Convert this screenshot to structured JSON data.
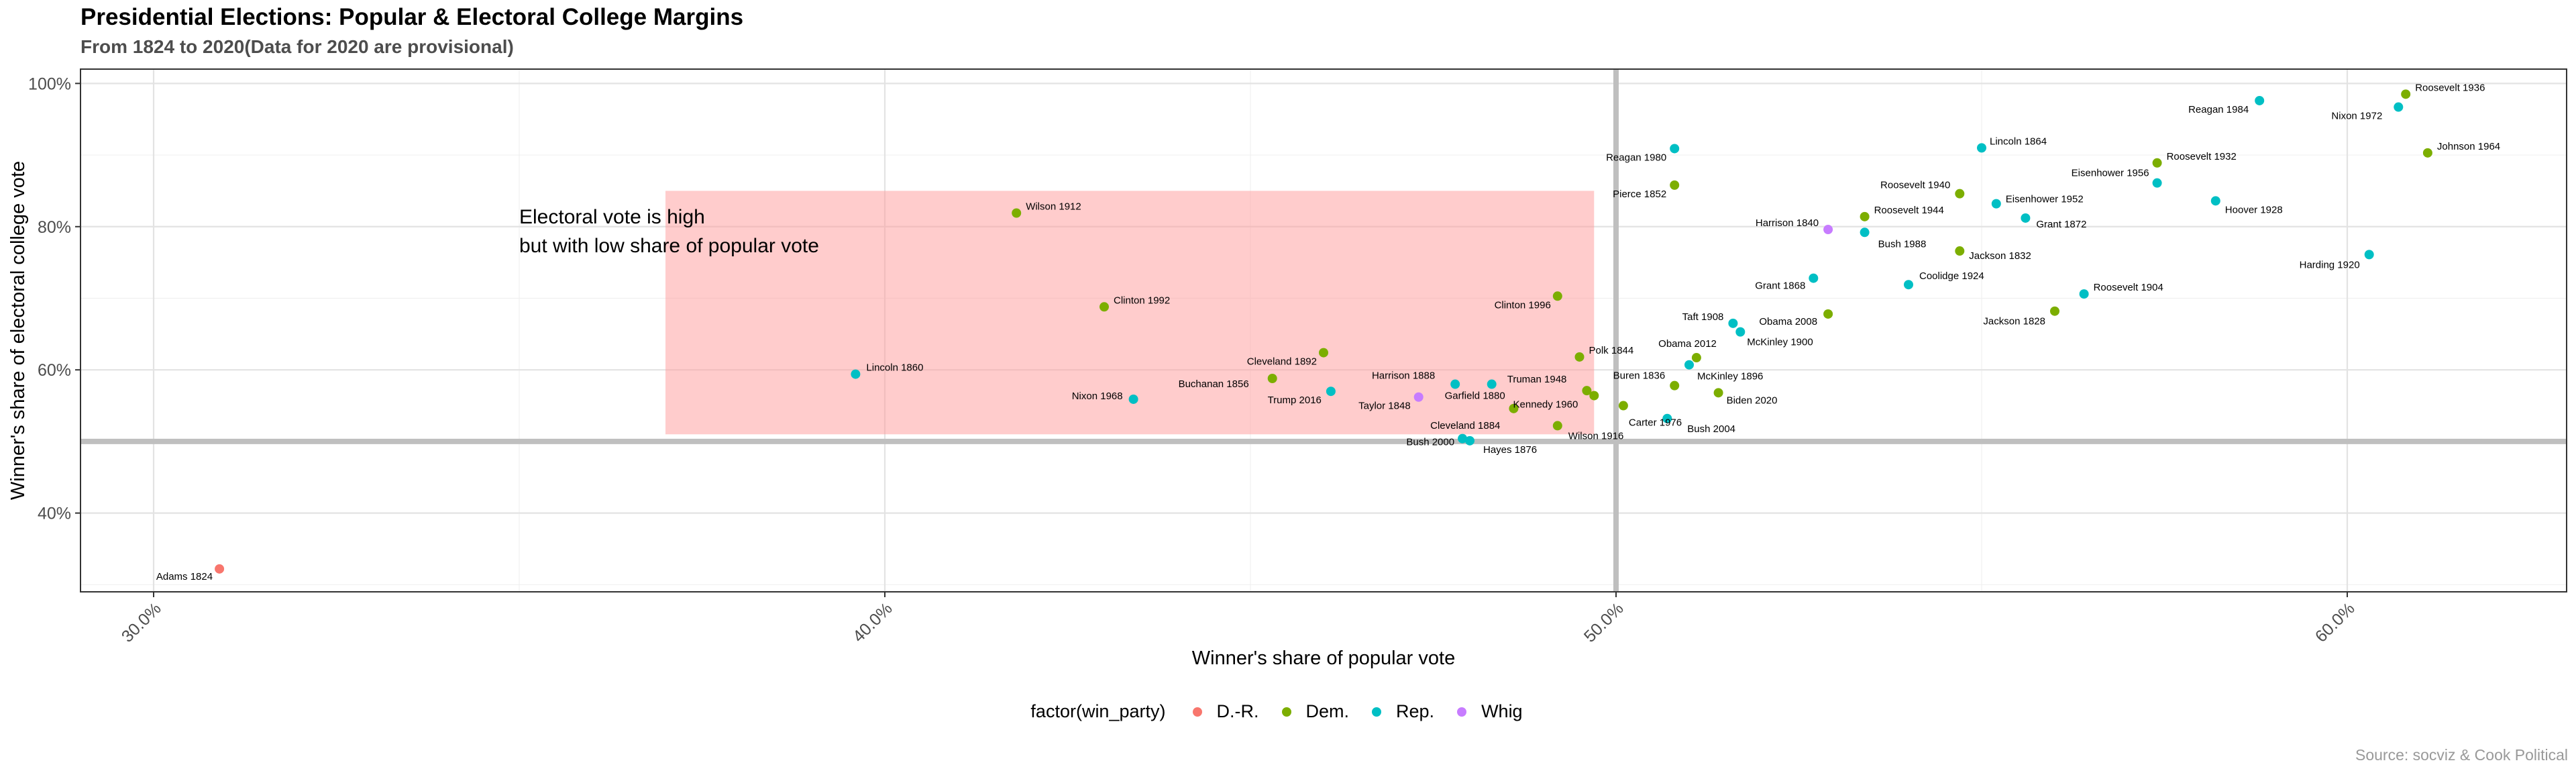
{
  "chart_data": {
    "type": "scatter",
    "title": "Presidential Elections: Popular & Electoral College Margins",
    "subtitle": "From 1824 to 2020(Data for 2020 are provisional)",
    "xlabel": "Winner's share of popular vote",
    "ylabel": "Winner's share of electoral college vote",
    "caption": "Source: socviz & Cook Political",
    "xlim": [
      0.29,
      0.63
    ],
    "ylim": [
      0.29,
      1.02
    ],
    "x_ticks": [
      0.3,
      0.4,
      0.5,
      0.6
    ],
    "x_tick_labels": [
      "30.0%",
      "40.0%",
      "50.0%",
      "60.0%"
    ],
    "y_ticks": [
      0.4,
      0.6,
      0.8,
      1.0
    ],
    "y_tick_labels": [
      "40%",
      "60%",
      "80%",
      "100%"
    ],
    "grid": true,
    "reference_lines": {
      "x": 0.5,
      "y": 0.5
    },
    "highlight_region": {
      "x": [
        0.37,
        0.497
      ],
      "y": [
        0.51,
        0.85
      ],
      "color": "#ff9999"
    },
    "annotation": [
      "Electoral vote is high",
      "but with low share of popular vote"
    ],
    "annotation_position": {
      "x": 0.35,
      "y": 0.87
    },
    "legend": {
      "title": "factor(win_party)",
      "position": "bottom",
      "items": [
        {
          "label": "D.-R.",
          "color": "#F8766D"
        },
        {
          "label": "Dem.",
          "color": "#7CAE00"
        },
        {
          "label": "Rep.",
          "color": "#00BFC4"
        },
        {
          "label": "Whig",
          "color": "#C77CFF"
        }
      ]
    },
    "points": [
      {
        "label": "Adams 1824",
        "x": 0.309,
        "y": 0.322,
        "party": "D.-R.",
        "dx": -10,
        "dy": 16,
        "anchor": "end"
      },
      {
        "label": "Lincoln 1860",
        "x": 0.396,
        "y": 0.594,
        "party": "Rep.",
        "dx": 16,
        "dy": -5,
        "anchor": "start"
      },
      {
        "label": "Wilson 1912",
        "x": 0.418,
        "y": 0.819,
        "party": "Dem.",
        "dx": 14,
        "dy": -5,
        "anchor": "start"
      },
      {
        "label": "Clinton 1992",
        "x": 0.43,
        "y": 0.688,
        "party": "Dem.",
        "dx": 14,
        "dy": -5,
        "anchor": "start"
      },
      {
        "label": "Nixon 1968",
        "x": 0.434,
        "y": 0.559,
        "party": "Rep.",
        "dx": -16,
        "dy": 0,
        "anchor": "end"
      },
      {
        "label": "Buchanan 1856",
        "x": 0.453,
        "y": 0.588,
        "party": "Dem.",
        "dx": -35,
        "dy": 13,
        "anchor": "end"
      },
      {
        "label": "Cleveland 1892",
        "x": 0.46,
        "y": 0.624,
        "party": "Dem.",
        "dx": -10,
        "dy": 18,
        "anchor": "end"
      },
      {
        "label": "Trump 2016",
        "x": 0.461,
        "y": 0.57,
        "party": "Rep.",
        "dx": -14,
        "dy": 18,
        "anchor": "end"
      },
      {
        "label": "Taylor 1848",
        "x": 0.473,
        "y": 0.562,
        "party": "Whig",
        "dx": -12,
        "dy": 18,
        "anchor": "end"
      },
      {
        "label": "Harrison 1888",
        "x": 0.478,
        "y": 0.58,
        "party": "Rep.",
        "dx": -30,
        "dy": -8,
        "anchor": "end"
      },
      {
        "label": "Garfield 1880",
        "x": 0.483,
        "y": 0.58,
        "party": "Rep.",
        "dx": 20,
        "dy": 22,
        "anchor": "end"
      },
      {
        "label": "Cleveland 1884",
        "x": 0.486,
        "y": 0.546,
        "party": "Dem.",
        "dx": -20,
        "dy": 30,
        "anchor": "end"
      },
      {
        "label": "Bush 2000",
        "x": 0.479,
        "y": 0.504,
        "party": "Rep.",
        "dx": -12,
        "dy": 10,
        "anchor": "end"
      },
      {
        "label": "Hayes 1876",
        "x": 0.48,
        "y": 0.501,
        "party": "Rep.",
        "dx": 20,
        "dy": 18,
        "anchor": "start"
      },
      {
        "label": "Clinton 1996",
        "x": 0.492,
        "y": 0.703,
        "party": "Dem.",
        "dx": -10,
        "dy": 18,
        "anchor": "end"
      },
      {
        "label": "Polk 1844",
        "x": 0.495,
        "y": 0.618,
        "party": "Dem.",
        "dx": 14,
        "dy": -5,
        "anchor": "start"
      },
      {
        "label": "Truman 1948",
        "x": 0.496,
        "y": 0.571,
        "party": "Dem.",
        "dx": -30,
        "dy": -12,
        "anchor": "end"
      },
      {
        "label": "Kennedy 1960",
        "x": 0.497,
        "y": 0.564,
        "party": "Dem.",
        "dx": -24,
        "dy": 18,
        "anchor": "end"
      },
      {
        "label": "Wilson 1916",
        "x": 0.492,
        "y": 0.522,
        "party": "Dem.",
        "dx": 16,
        "dy": 20,
        "anchor": "start"
      },
      {
        "label": "Carter 1976",
        "x": 0.501,
        "y": 0.55,
        "party": "Dem.",
        "dx": 8,
        "dy": 30,
        "anchor": "start"
      },
      {
        "label": "Reagan 1980",
        "x": 0.508,
        "y": 0.909,
        "party": "Rep.",
        "dx": -12,
        "dy": 18,
        "anchor": "end"
      },
      {
        "label": "Pierce 1852",
        "x": 0.508,
        "y": 0.858,
        "party": "Dem.",
        "dx": -12,
        "dy": 18,
        "anchor": "end"
      },
      {
        "label": "Buren 1836",
        "x": 0.508,
        "y": 0.578,
        "party": "Dem.",
        "dx": -14,
        "dy": -10,
        "anchor": "end"
      },
      {
        "label": "Bush 2004",
        "x": 0.507,
        "y": 0.532,
        "party": "Rep.",
        "dx": 30,
        "dy": 20,
        "anchor": "start"
      },
      {
        "label": "Obama 2012",
        "x": 0.511,
        "y": 0.617,
        "party": "Dem.",
        "dx": 30,
        "dy": -16,
        "anchor": "end"
      },
      {
        "label": "Taft 1908",
        "x": 0.516,
        "y": 0.665,
        "party": "Rep.",
        "dx": -14,
        "dy": -5,
        "anchor": "end"
      },
      {
        "label": "McKinley 1900",
        "x": 0.517,
        "y": 0.653,
        "party": "Rep.",
        "dx": 10,
        "dy": 20,
        "anchor": "start"
      },
      {
        "label": "McKinley 1896",
        "x": 0.51,
        "y": 0.607,
        "party": "Rep.",
        "dx": 12,
        "dy": 22,
        "anchor": "start"
      },
      {
        "label": "Biden 2020",
        "x": 0.514,
        "y": 0.568,
        "party": "Dem.",
        "dx": 12,
        "dy": 16,
        "anchor": "start"
      },
      {
        "label": "Obama 2008",
        "x": 0.529,
        "y": 0.678,
        "party": "Dem.",
        "dx": -16,
        "dy": 16,
        "anchor": "end"
      },
      {
        "label": "Grant 1868",
        "x": 0.527,
        "y": 0.728,
        "party": "Rep.",
        "dx": -12,
        "dy": 16,
        "anchor": "end"
      },
      {
        "label": "Harrison 1840",
        "x": 0.529,
        "y": 0.796,
        "party": "Whig",
        "dx": -14,
        "dy": -5,
        "anchor": "end"
      },
      {
        "label": "Roosevelt 1944",
        "x": 0.534,
        "y": 0.814,
        "party": "Dem.",
        "dx": 14,
        "dy": -5,
        "anchor": "start"
      },
      {
        "label": "Bush 1988",
        "x": 0.534,
        "y": 0.792,
        "party": "Rep.",
        "dx": 20,
        "dy": 22,
        "anchor": "start"
      },
      {
        "label": "Coolidge 1924",
        "x": 0.54,
        "y": 0.719,
        "party": "Rep.",
        "dx": 16,
        "dy": -8,
        "anchor": "start"
      },
      {
        "label": "Roosevelt 1940",
        "x": 0.547,
        "y": 0.846,
        "party": "Dem.",
        "dx": -14,
        "dy": -8,
        "anchor": "end"
      },
      {
        "label": "Jackson 1832",
        "x": 0.547,
        "y": 0.766,
        "party": "Dem.",
        "dx": 14,
        "dy": 12,
        "anchor": "start"
      },
      {
        "label": "Lincoln 1864",
        "x": 0.55,
        "y": 0.91,
        "party": "Rep.",
        "dx": 12,
        "dy": -5,
        "anchor": "start"
      },
      {
        "label": "Eisenhower 1952",
        "x": 0.552,
        "y": 0.832,
        "party": "Rep.",
        "dx": 14,
        "dy": -2,
        "anchor": "start"
      },
      {
        "label": "Grant 1872",
        "x": 0.556,
        "y": 0.812,
        "party": "Rep.",
        "dx": 16,
        "dy": 14,
        "anchor": "start"
      },
      {
        "label": "Jackson 1828",
        "x": 0.56,
        "y": 0.682,
        "party": "Dem.",
        "dx": -14,
        "dy": 20,
        "anchor": "end"
      },
      {
        "label": "Roosevelt 1904",
        "x": 0.564,
        "y": 0.706,
        "party": "Rep.",
        "dx": 14,
        "dy": -5,
        "anchor": "start"
      },
      {
        "label": "Eisenhower 1956",
        "x": 0.574,
        "y": 0.861,
        "party": "Rep.",
        "dx": -12,
        "dy": -10,
        "anchor": "end"
      },
      {
        "label": "Roosevelt 1932",
        "x": 0.574,
        "y": 0.889,
        "party": "Dem.",
        "dx": 14,
        "dy": -5,
        "anchor": "start"
      },
      {
        "label": "Hoover 1928",
        "x": 0.582,
        "y": 0.836,
        "party": "Rep.",
        "dx": 14,
        "dy": 18,
        "anchor": "start"
      },
      {
        "label": "Reagan 1984",
        "x": 0.588,
        "y": 0.976,
        "party": "Rep.",
        "dx": -16,
        "dy": 18,
        "anchor": "end"
      },
      {
        "label": "Harding 1920",
        "x": 0.603,
        "y": 0.761,
        "party": "Rep.",
        "dx": -14,
        "dy": 20,
        "anchor": "end"
      },
      {
        "label": "Nixon 1972",
        "x": 0.607,
        "y": 0.967,
        "party": "Rep.",
        "dx": -24,
        "dy": 18,
        "anchor": "end"
      },
      {
        "label": "Roosevelt 1936",
        "x": 0.608,
        "y": 0.985,
        "party": "Dem.",
        "dx": 14,
        "dy": -5,
        "anchor": "start"
      },
      {
        "label": "Johnson 1964",
        "x": 0.611,
        "y": 0.903,
        "party": "Dem.",
        "dx": 14,
        "dy": -5,
        "anchor": "start"
      }
    ]
  }
}
